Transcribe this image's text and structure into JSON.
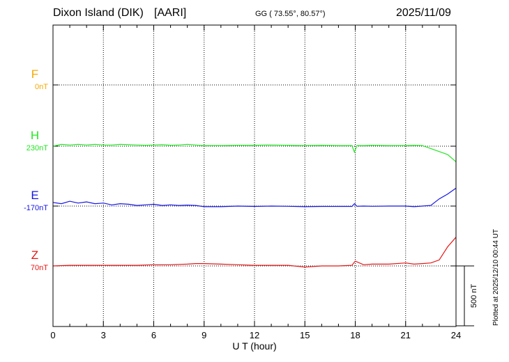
{
  "header": {
    "station": "Dixon Island (DIK)",
    "institute": "[AARI]",
    "coords": "GG ( 73.55°,  80.57°)",
    "date": "2025/11/09"
  },
  "plotted_note": "Plotted at 2025/12/10 00:44 UT",
  "chart_data": {
    "type": "line",
    "xlabel": "U T (hour)",
    "xlim": [
      0,
      24
    ],
    "x_ticks": [
      0,
      3,
      6,
      9,
      12,
      15,
      18,
      21,
      24
    ],
    "scale_bar": {
      "label": "500 nT",
      "value_nT": 500
    },
    "grid": true,
    "series": [
      {
        "name": "F",
        "baseline_label": "0nT",
        "color": "#f5a800",
        "x": [],
        "y": []
      },
      {
        "name": "H",
        "baseline_label": "230nT",
        "color": "#22e622",
        "x": [
          0,
          0.5,
          1,
          1.5,
          2,
          2.5,
          3,
          3.5,
          4,
          4.5,
          5,
          5.5,
          6,
          6.5,
          7,
          7.5,
          8,
          8.5,
          9,
          10,
          11,
          12,
          13,
          14,
          15,
          16,
          17,
          17.8,
          17.95,
          18.1,
          18.5,
          19,
          20,
          21,
          21.5,
          22,
          22.5,
          23,
          23.5,
          24
        ],
        "y": [
          0,
          15,
          10,
          15,
          10,
          15,
          10,
          10,
          15,
          12,
          10,
          8,
          10,
          12,
          8,
          10,
          15,
          10,
          5,
          5,
          8,
          8,
          10,
          8,
          5,
          8,
          5,
          5,
          -50,
          5,
          5,
          8,
          5,
          5,
          8,
          5,
          -20,
          -45,
          -70,
          -130
        ]
      },
      {
        "name": "E",
        "baseline_label": "-170nT",
        "color": "#1414e6",
        "x": [
          0,
          0.5,
          1,
          1.5,
          2,
          2.5,
          3,
          3.5,
          4,
          4.5,
          5,
          5.5,
          6,
          6.5,
          7,
          7.5,
          8,
          8.5,
          9,
          10,
          11,
          12,
          13,
          14,
          15,
          16,
          17,
          17.8,
          17.95,
          18.1,
          18.5,
          19,
          20,
          21,
          21.5,
          22,
          22.5,
          23,
          23.5,
          24
        ],
        "y": [
          30,
          20,
          40,
          25,
          35,
          20,
          25,
          10,
          20,
          15,
          5,
          10,
          15,
          5,
          10,
          5,
          8,
          5,
          -5,
          -5,
          0,
          -3,
          0,
          -2,
          -5,
          -3,
          -3,
          -3,
          20,
          -2,
          0,
          -2,
          0,
          0,
          -5,
          0,
          5,
          60,
          100,
          150
        ]
      },
      {
        "name": "Z",
        "baseline_label": "70nT",
        "color": "#e61414",
        "x": [
          0,
          1,
          2,
          3,
          4,
          5,
          6,
          7,
          8,
          8.5,
          9,
          10,
          11,
          12,
          13,
          14,
          15,
          16,
          17,
          17.8,
          18,
          18.5,
          19,
          20,
          21,
          21.5,
          22,
          22.5,
          23,
          23.5,
          24
        ],
        "y": [
          0,
          5,
          5,
          5,
          5,
          5,
          10,
          10,
          15,
          20,
          20,
          15,
          10,
          5,
          5,
          5,
          -10,
          0,
          0,
          5,
          40,
          10,
          15,
          15,
          25,
          15,
          20,
          25,
          50,
          160,
          240
        ]
      }
    ]
  }
}
